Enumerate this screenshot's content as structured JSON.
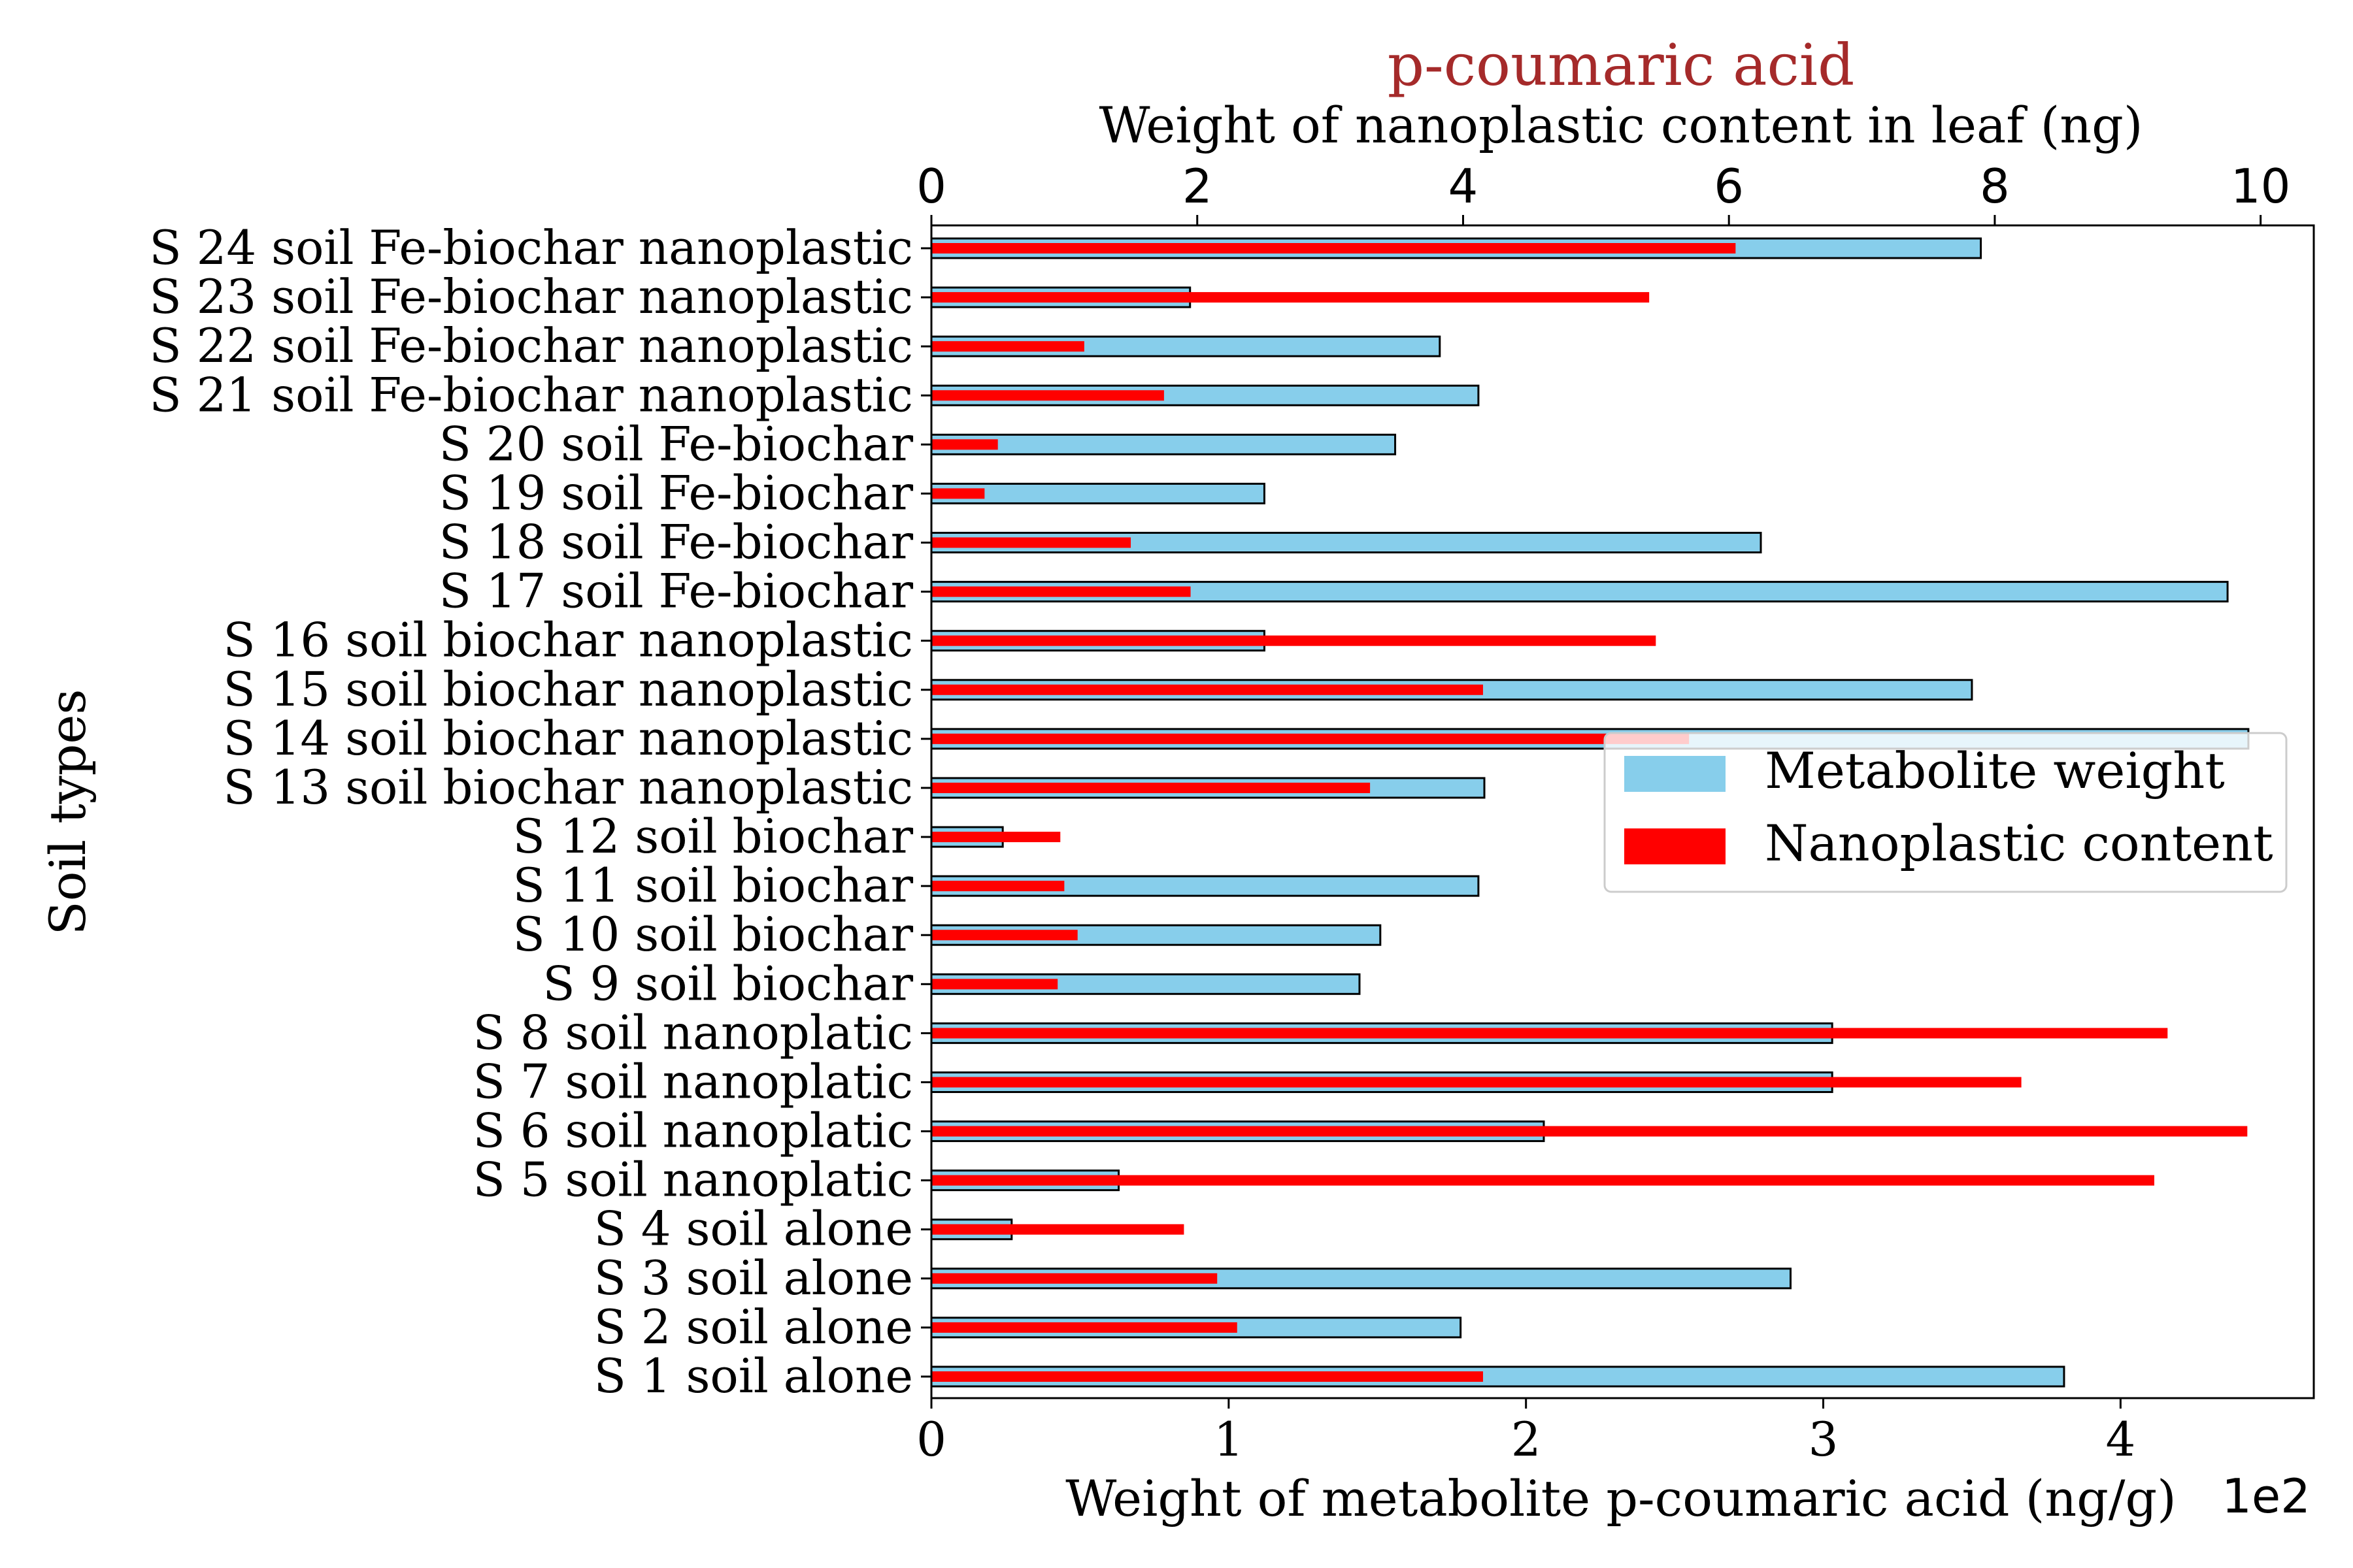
{
  "chart_data": {
    "type": "bar",
    "orientation": "horizontal",
    "title": "p-coumaric acid",
    "title_color": "#a52a2a",
    "xlabel": "Weight of metabolite p-coumaric acid (ng/g)",
    "x_offset_text": "1e2",
    "x2label": "Weight of nanoplastic content in leaf (ng)",
    "ylabel": "Soil types",
    "xlim": [
      0,
      4.65
    ],
    "x2lim": [
      0,
      10.4
    ],
    "xticks": [
      "0",
      "1",
      "2",
      "3",
      "4"
    ],
    "x2ticks": [
      "0",
      "2",
      "4",
      "6",
      "8",
      "10"
    ],
    "categories": [
      "S 1 soil alone",
      "S 2 soil alone",
      "S 3 soil alone",
      "S 4 soil alone",
      "S 5 soil nanoplatic",
      "S 6 soil nanoplatic",
      "S 7 soil nanoplatic",
      "S 8 soil nanoplatic",
      "S 9 soil biochar",
      "S 10 soil biochar",
      "S 11 soil biochar",
      "S 12 soil biochar",
      "S 13 soil biochar nanoplastic",
      "S 14 soil biochar nanoplastic",
      "S 15 soil biochar nanoplastic",
      "S 16 soil biochar nanoplastic",
      "S 17 soil Fe-biochar",
      "S 18 soil Fe-biochar",
      "S 19 soil Fe-biochar",
      "S 20 soil Fe-biochar",
      "S 21 soil Fe-biochar nanoplastic",
      "S 22 soil Fe-biochar nanoplastic",
      "S 23 soil Fe-biochar nanoplastic",
      "S 24 soil Fe-biochar nanoplastic"
    ],
    "series": [
      {
        "name": "Metabolite weight",
        "axis": "bottom",
        "color": "#87ceeb",
        "values": [
          3.81,
          1.78,
          2.89,
          0.27,
          0.63,
          2.06,
          3.03,
          3.03,
          1.44,
          1.51,
          1.84,
          0.24,
          1.86,
          4.43,
          3.5,
          1.12,
          4.36,
          2.79,
          1.12,
          1.56,
          1.84,
          1.71,
          0.87,
          3.53
        ]
      },
      {
        "name": "Nanoplastic content",
        "axis": "top",
        "color": "#ff0000",
        "values": [
          4.15,
          2.3,
          2.15,
          1.9,
          9.2,
          9.9,
          8.2,
          9.3,
          0.95,
          1.1,
          1.0,
          0.97,
          3.3,
          5.7,
          4.15,
          5.45,
          1.95,
          1.5,
          0.4,
          0.5,
          1.75,
          1.15,
          5.4,
          6.05
        ]
      }
    ],
    "legend_position": "center-right",
    "grid": false
  }
}
